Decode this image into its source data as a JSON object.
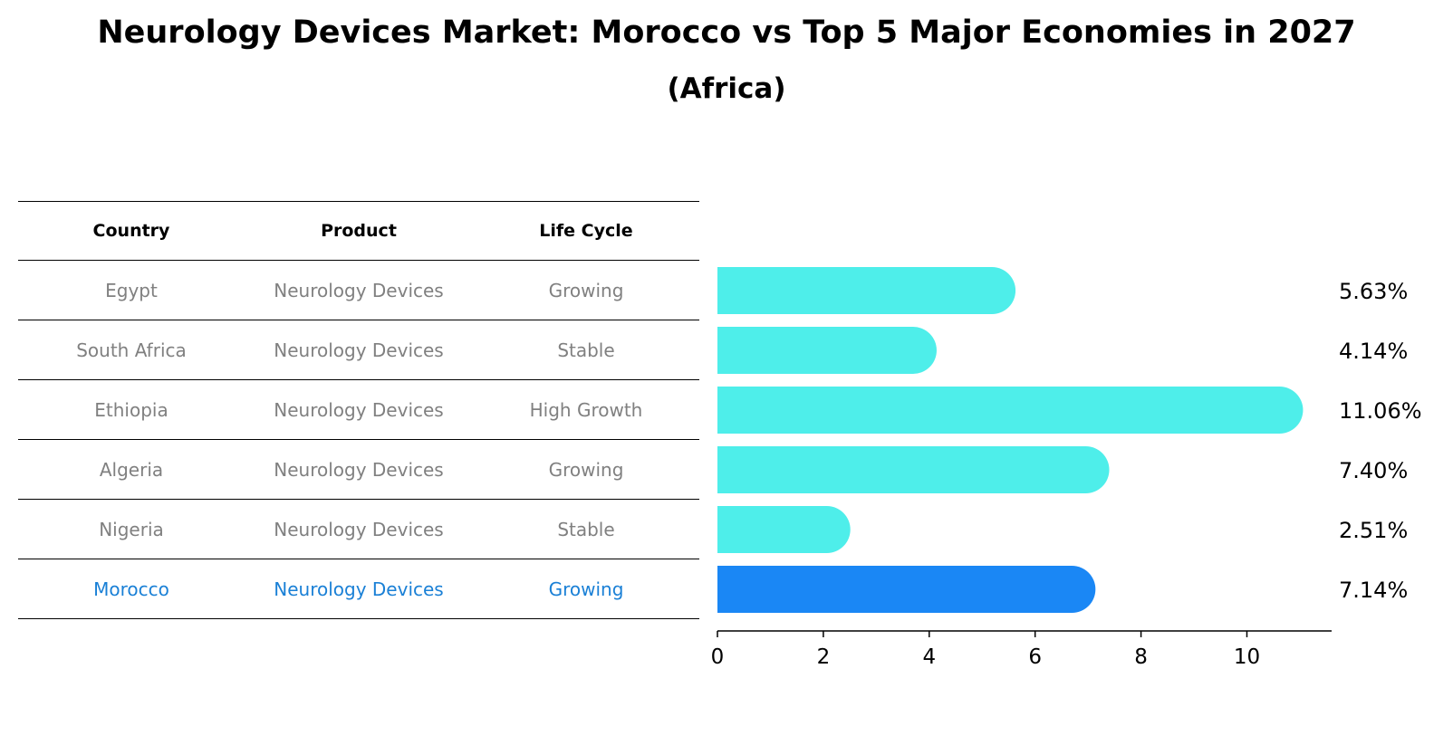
{
  "title": "Neurology Devices Market: Morocco vs Top 5 Major Economies in 2027",
  "subtitle": "(Africa)",
  "table": {
    "headers": [
      "Country",
      "Product",
      "Life Cycle"
    ],
    "rows": [
      {
        "country": "Egypt",
        "product": "Neurology Devices",
        "life_cycle": "Growing"
      },
      {
        "country": "South Africa",
        "product": "Neurology Devices",
        "life_cycle": "Stable"
      },
      {
        "country": "Ethiopia",
        "product": "Neurology Devices",
        "life_cycle": "High Growth"
      },
      {
        "country": "Algeria",
        "product": "Neurology Devices",
        "life_cycle": "Growing"
      },
      {
        "country": "Nigeria",
        "product": "Neurology Devices",
        "life_cycle": "Stable"
      },
      {
        "country": "Morocco",
        "product": "Neurology Devices",
        "life_cycle": "Growing"
      }
    ]
  },
  "chart_data": {
    "type": "bar",
    "orientation": "horizontal",
    "title": "Neurology Devices Market: Morocco vs Top 5 Major Economies in 2027",
    "subtitle": "(Africa)",
    "categories": [
      "Egypt",
      "South Africa",
      "Ethiopia",
      "Algeria",
      "Nigeria",
      "Morocco"
    ],
    "values": [
      5.63,
      4.14,
      11.06,
      7.4,
      2.51,
      7.14
    ],
    "value_labels": [
      "5.63%",
      "4.14%",
      "11.06%",
      "7.40%",
      "2.51%",
      "7.14%"
    ],
    "highlight": "Morocco",
    "xlim": [
      0,
      11.6
    ],
    "xticks": [
      0,
      2,
      4,
      6,
      8,
      10
    ],
    "xlabel": "",
    "ylabel": "",
    "grid": false
  },
  "colors": {
    "bar": "#4eeeea",
    "highlight": "#1a87f5",
    "highlight_text": "#1a80d6",
    "muted_text": "#808080",
    "axis": "#000000"
  }
}
